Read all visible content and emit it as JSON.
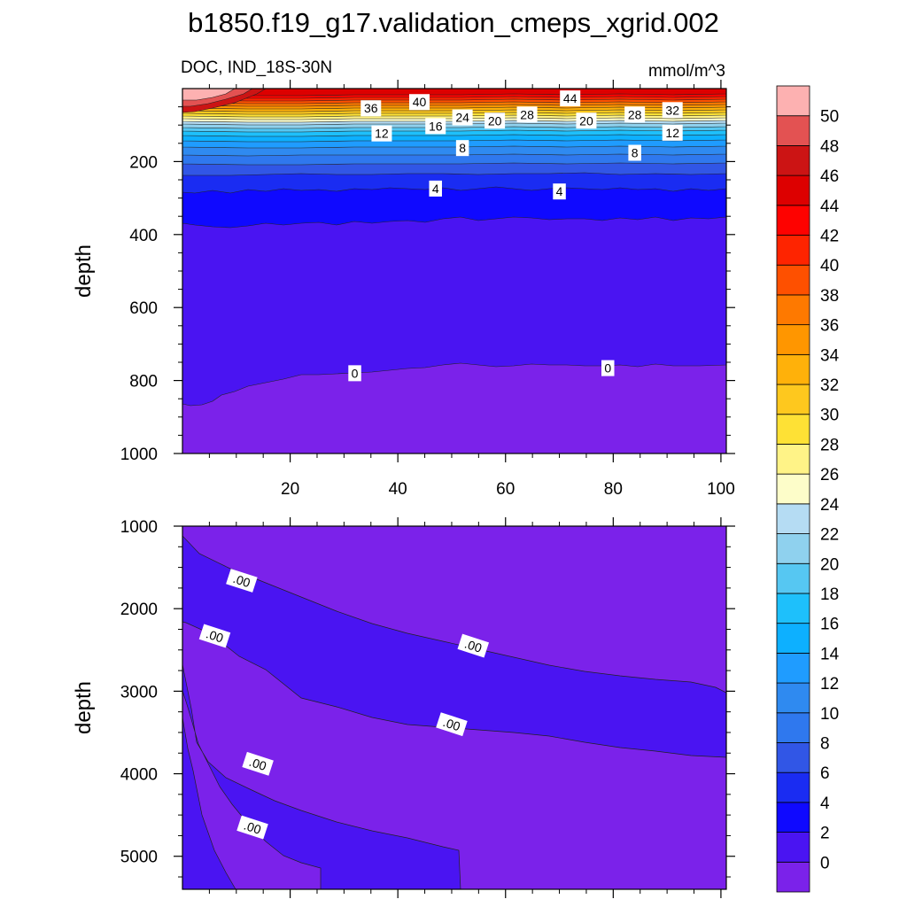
{
  "title": "b1850.f19_g17.validation_cmeps_xgrid.002",
  "panel_label_left": "DOC, IND_18S-30N",
  "panel_label_right": "mmol/m^3",
  "colors": {
    "c_lt0": "#7b22ea",
    "c_0_2": "#4a14f2",
    "c_2_4": "#0f09ff",
    "c_4_6": "#1a2cf2",
    "c_6_8": "#3156e6",
    "c_8_10": "#2f78ee",
    "c_10_12": "#2f8af0",
    "c_12_14": "#1f9cff",
    "c_14_16": "#0db0ff",
    "c_16_18": "#1ec0fb",
    "c_18_20": "#56c7f2",
    "c_20_22": "#8fd1ee",
    "c_22_24": "#b5dcf3",
    "c_24_26": "#fdfdc9",
    "c_26_28": "#fff387",
    "c_28_30": "#fee135",
    "c_30_32": "#fec81e",
    "c_32_34": "#ffb10a",
    "c_34_36": "#ff9600",
    "c_36_38": "#fe7900",
    "c_38_40": "#fe5000",
    "c_40_42": "#fe2400",
    "c_42_44": "#fe0200",
    "c_44_46": "#dd0000",
    "c_46_48": "#cc1414",
    "c_48_50": "#e35252",
    "c_gt50": "#fdb1b1"
  },
  "chart_data": [
    {
      "type": "heatmap",
      "panel": "upper",
      "x_range": [
        0,
        101
      ],
      "y_range": [
        0,
        1000
      ],
      "y_reversed": true,
      "x_ticks": [
        "20",
        "40",
        "60",
        "80",
        "100"
      ],
      "y_ticks": [
        "200",
        "400",
        "600",
        "800",
        "1000"
      ],
      "ylabel": "depth",
      "contour_interval": 2,
      "contour_labels": [
        {
          "text": "40",
          "x": 44,
          "y": 37
        },
        {
          "text": "44",
          "x": 72,
          "y": 27
        },
        {
          "text": "36",
          "x": 35,
          "y": 54
        },
        {
          "text": "24",
          "x": 52,
          "y": 79
        },
        {
          "text": "28",
          "x": 64,
          "y": 71
        },
        {
          "text": "20",
          "x": 58,
          "y": 88
        },
        {
          "text": "20",
          "x": 75,
          "y": 88
        },
        {
          "text": "28",
          "x": 84,
          "y": 71
        },
        {
          "text": "32",
          "x": 91,
          "y": 59
        },
        {
          "text": "16",
          "x": 47,
          "y": 103
        },
        {
          "text": "12",
          "x": 37,
          "y": 123
        },
        {
          "text": "12",
          "x": 91,
          "y": 121
        },
        {
          "text": "8",
          "x": 52,
          "y": 163
        },
        {
          "text": "8",
          "x": 84,
          "y": 176
        },
        {
          "text": "4",
          "x": 47,
          "y": 274
        },
        {
          "text": "4",
          "x": 70,
          "y": 282
        },
        {
          "text": "0",
          "x": 32,
          "y": 780
        },
        {
          "text": "0",
          "x": 79,
          "y": 766
        }
      ]
    },
    {
      "type": "heatmap",
      "panel": "lower",
      "x_range": [
        0,
        101
      ],
      "y_range": [
        1000,
        5400
      ],
      "y_reversed": true,
      "y_ticks": [
        "1000",
        "2000",
        "3000",
        "4000",
        "5000"
      ],
      "ylabel": "depth",
      "contour_labels": [
        {
          "text": ".00",
          "x": 11,
          "y": 1660
        },
        {
          "text": ".00",
          "x": 6,
          "y": 2330
        },
        {
          "text": ".00",
          "x": 54,
          "y": 2450
        },
        {
          "text": ".00",
          "x": 50,
          "y": 3400
        },
        {
          "text": ".00",
          "x": 14,
          "y": 3880
        },
        {
          "text": ".00",
          "x": 13,
          "y": 4650
        }
      ]
    },
    {
      "type": "colorbar",
      "levels": [
        "0",
        "2",
        "4",
        "6",
        "8",
        "10",
        "12",
        "14",
        "16",
        "18",
        "20",
        "22",
        "24",
        "26",
        "28",
        "30",
        "32",
        "34",
        "36",
        "38",
        "40",
        "42",
        "44",
        "46",
        "48",
        "50"
      ]
    }
  ]
}
